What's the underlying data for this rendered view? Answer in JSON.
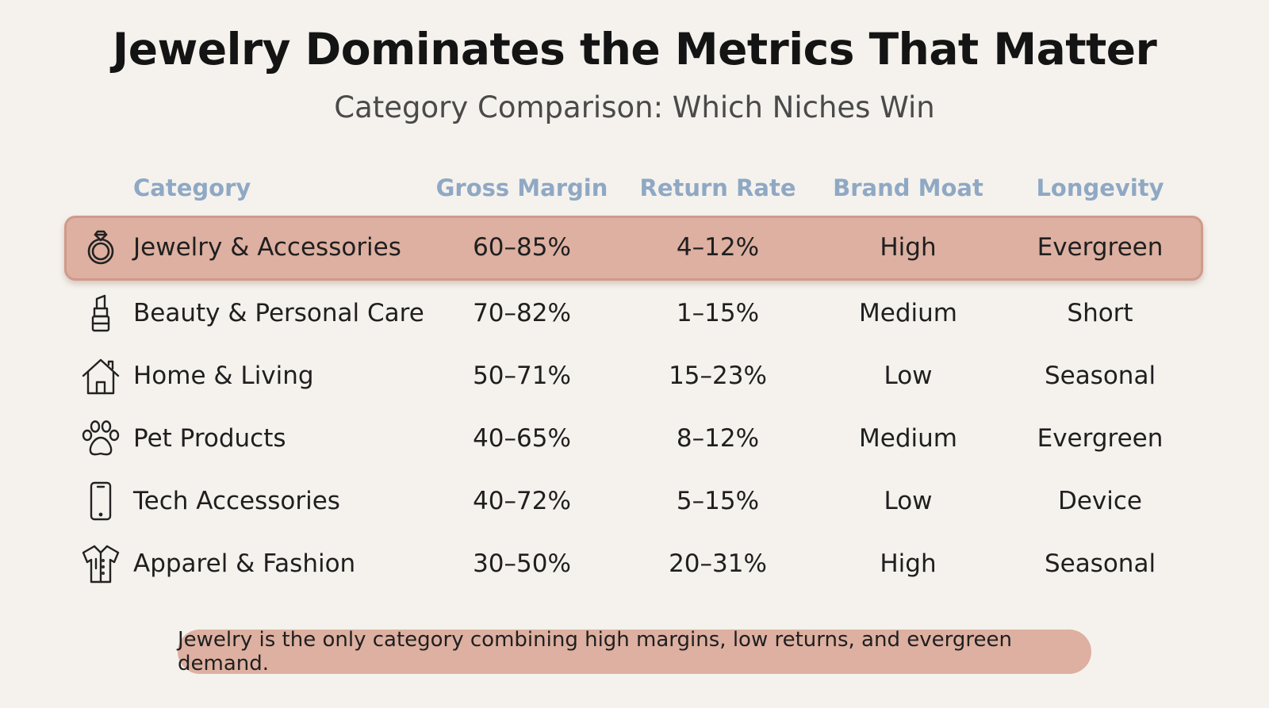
{
  "title": "Jewelry Dominates the Metrics That Matter",
  "subtitle": "Category Comparison: Which Niches Win",
  "table": {
    "headers": {
      "category": "Category",
      "gross_margin": "Gross Margin",
      "return_rate": "Return Rate",
      "brand_moat": "Brand Moat",
      "longevity": "Longevity"
    },
    "rows": [
      {
        "category": "Jewelry & Accessories",
        "gross_margin": "60–85%",
        "return_rate": "4–12%",
        "brand_moat": "High",
        "longevity": "Evergreen",
        "icon": "ring-icon",
        "highlighted": true
      },
      {
        "category": "Beauty & Personal Care",
        "gross_margin": "70–82%",
        "return_rate": "1–15%",
        "brand_moat": "Medium",
        "longevity": "Short",
        "icon": "lipstick-icon"
      },
      {
        "category": "Home & Living",
        "gross_margin": "50–71%",
        "return_rate": "15–23%",
        "brand_moat": "Low",
        "longevity": "Seasonal",
        "icon": "house-icon"
      },
      {
        "category": "Pet Products",
        "gross_margin": "40–65%",
        "return_rate": "8–12%",
        "brand_moat": "Medium",
        "longevity": "Evergreen",
        "icon": "paw-icon"
      },
      {
        "category": "Tech Accessories",
        "gross_margin": "40–72%",
        "return_rate": "5–15%",
        "brand_moat": "Low",
        "longevity": "Device",
        "icon": "phone-icon"
      },
      {
        "category": "Apparel & Fashion",
        "gross_margin": "30–50%",
        "return_rate": "20–31%",
        "brand_moat": "High",
        "longevity": "Seasonal",
        "icon": "shirt-icon"
      }
    ]
  },
  "footer_note": "Jewelry is the only category combining high margins, low returns, and evergreen demand.",
  "colors": {
    "background": "#f5f2ed",
    "highlight": "#ddb0a1",
    "header_text": "#8fa8c4"
  }
}
